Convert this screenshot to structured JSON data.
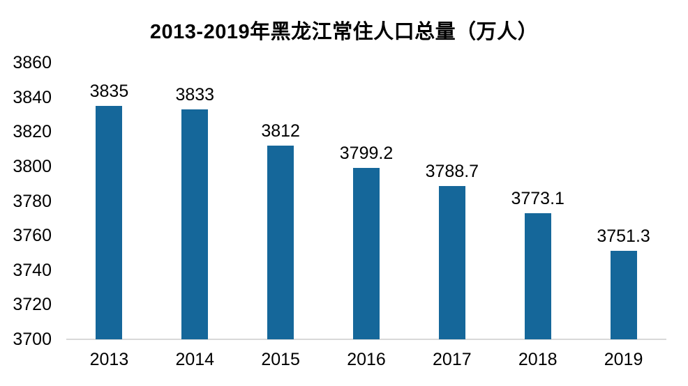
{
  "chart_data": {
    "type": "bar",
    "title": "2013-2019年黑龙江常住人口总量（万人）",
    "categories": [
      "2013",
      "2014",
      "2015",
      "2016",
      "2017",
      "2018",
      "2019"
    ],
    "values": [
      3835,
      3833,
      3812,
      3799.2,
      3788.7,
      3773.1,
      3751.3
    ],
    "value_labels": [
      "3835",
      "3833",
      "3812",
      "3799.2",
      "3788.7",
      "3773.1",
      "3751.3"
    ],
    "xlabel": "",
    "ylabel": "",
    "ylim": [
      3700,
      3860
    ],
    "yticks": [
      3700,
      3720,
      3740,
      3760,
      3780,
      3800,
      3820,
      3840,
      3860
    ],
    "grid": false,
    "legend": false,
    "bar_color": "#15679a",
    "axis_line_color": "#d9d9d9",
    "text_color": "#000000",
    "background_color": "#ffffff"
  }
}
